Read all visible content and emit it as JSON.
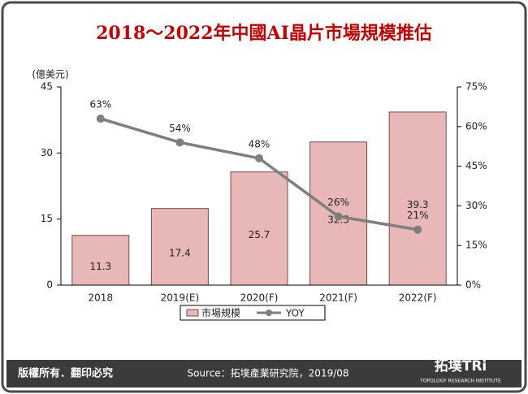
{
  "chart_data": {
    "type": "bar_line",
    "title": "2018～2022年中國AI晶片市場規模推估",
    "y_label": "(億美元)",
    "categories": [
      "2018",
      "2019(E)",
      "2020(F)",
      "2021(F)",
      "2022(F)"
    ],
    "series": [
      {
        "name": "市場規模",
        "type": "bar",
        "color": "#e8b7b7",
        "values": [
          11.3,
          17.4,
          25.7,
          32.5,
          39.3
        ]
      },
      {
        "name": "YOY",
        "type": "line",
        "axis": "y2",
        "color": "#7f7f7f",
        "values": [
          63,
          54,
          48,
          26,
          21
        ],
        "value_labels": [
          "63%",
          "54%",
          "48%",
          "26%",
          "21%"
        ]
      }
    ],
    "ylim": [
      0,
      45
    ],
    "yticks": [
      0,
      15,
      30,
      45
    ],
    "y2lim": [
      0,
      75
    ],
    "y2ticks": [
      {
        "value": 0,
        "label": "0%"
      },
      {
        "value": 15,
        "label": "15%"
      },
      {
        "value": 30,
        "label": "30%"
      },
      {
        "value": 45,
        "label": "45%"
      },
      {
        "value": 60,
        "label": "60%"
      },
      {
        "value": 75,
        "label": "75%"
      }
    ],
    "legend": "bottom"
  },
  "footer": {
    "copyright": "版權所有．翻印必究",
    "source": "Source：拓墣產業研究院，2019/08"
  },
  "logo": {
    "name": "拓墣TRi",
    "subtitle": "TOPOLOGY RESEARCH INSTITUTE"
  }
}
